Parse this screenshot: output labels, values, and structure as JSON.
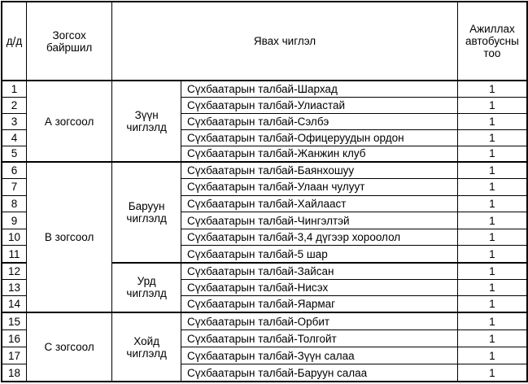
{
  "headers": {
    "num": "д/д",
    "location": "Зогсох байршил",
    "route": "Явах чиглэл",
    "buses": "Ажиллах автобусны тоо"
  },
  "stops": [
    {
      "name": "А зогсоол",
      "directions": [
        {
          "name": "Зүүн чиглэлд",
          "routes": [
            {
              "n": "1",
              "route": "Сүхбаатарын талбай-Шархад",
              "buses": "1"
            },
            {
              "n": "2",
              "route": "Сүхбаатарын талбай-Улиастай",
              "buses": "1"
            },
            {
              "n": "3",
              "route": "Сүхбаатарын талбай-Сэлбэ",
              "buses": "1"
            },
            {
              "n": "4",
              "route": "Сүхбаатарын талбай-Офицеруудын ордон",
              "buses": "1"
            },
            {
              "n": "5",
              "route": "Сүхбаатарын талбай-Жанжин клуб",
              "buses": "1"
            }
          ]
        }
      ]
    },
    {
      "name": "В зогсоол",
      "directions": [
        {
          "name": "Баруун чиглэлд",
          "routes": [
            {
              "n": "6",
              "route": "Сүхбаатарын талбай-Баянхошуу",
              "buses": "1"
            },
            {
              "n": "7",
              "route": "Сүхбаатарын талбай-Улаан чулуут",
              "buses": "1"
            },
            {
              "n": "8",
              "route": "Сүхбаатарын талбай-Хайлааст",
              "buses": "1"
            },
            {
              "n": "9",
              "route": "Сүхбаатарын талбай-Чингэлтэй",
              "buses": "1"
            },
            {
              "n": "10",
              "route": "Сүхбаатарын талбай-3,4 дүгээр хороолол",
              "buses": "1"
            },
            {
              "n": "11",
              "route": "Сүхбаатарын талбай-5 шар",
              "buses": "1"
            }
          ]
        },
        {
          "name": "Урд чиглэлд",
          "routes": [
            {
              "n": "12",
              "route": "Сүхбаатарын талбай-Зайсан",
              "buses": "1"
            },
            {
              "n": "13",
              "route": "Сүхбаатарын талбай-Нисэх",
              "buses": "1"
            },
            {
              "n": "14",
              "route": "Сүхбаатарын талбай-Яармаг",
              "buses": "1"
            }
          ]
        }
      ]
    },
    {
      "name": "С зогсоол",
      "directions": [
        {
          "name": "Хойд чиглэлд",
          "routes": [
            {
              "n": "15",
              "route": "Сүхбаатарын талбай-Орбит",
              "buses": "1"
            },
            {
              "n": "16",
              "route": "Сүхбаатарын талбай-Толгойт",
              "buses": "1"
            },
            {
              "n": "17",
              "route": "Сүхбаатарын талбай-Зүүн салаа",
              "buses": "1"
            },
            {
              "n": "18",
              "route": "Сүхбаатарын талбай-Баруун салаа",
              "buses": "1"
            }
          ]
        }
      ]
    }
  ]
}
